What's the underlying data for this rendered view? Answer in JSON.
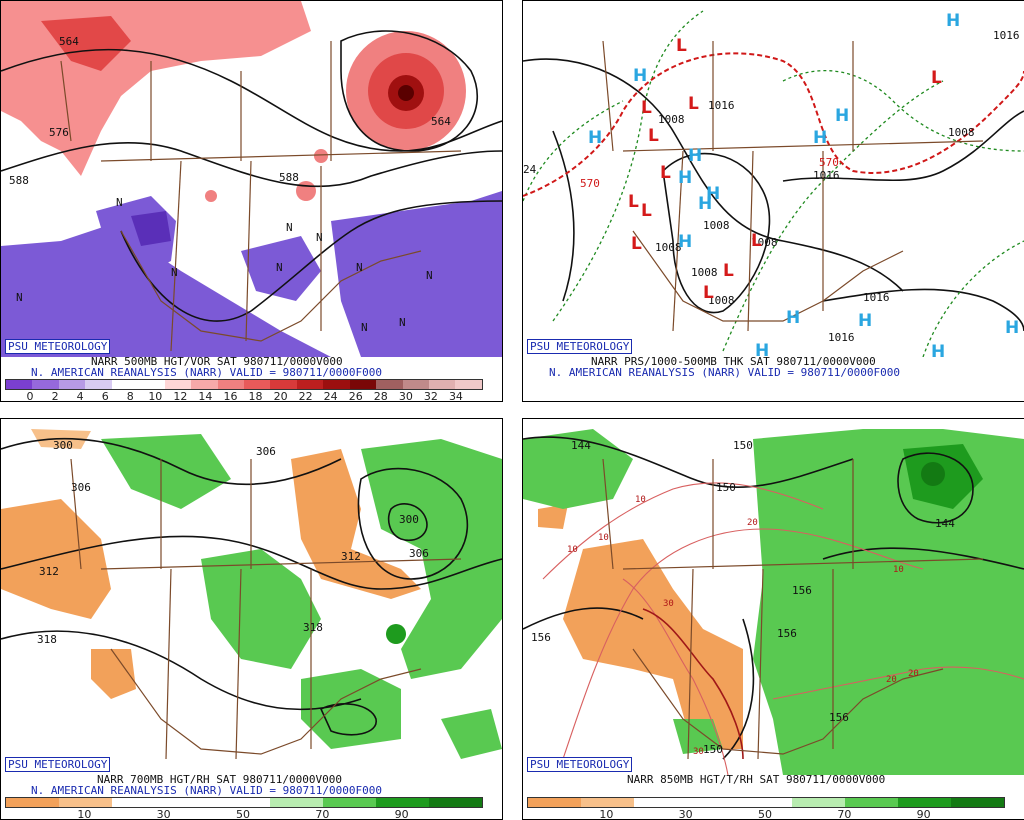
{
  "badge": "PSU METEOROLOGY",
  "panels": {
    "p1": {
      "line1": "NARR 500MB HGT/VOR SAT 980711/0000V000",
      "line2": "N. AMERICAN REANALYSIS (NARR) VALID = 980711/0000F000",
      "colorbar_labels": [
        "0",
        "2",
        "4",
        "6",
        "8",
        "10",
        "12",
        "14",
        "16",
        "18",
        "20",
        "22",
        "24",
        "26",
        "28",
        "30",
        "32",
        "34"
      ],
      "colorbar_colors": [
        "#7b3fd0",
        "#9669dc",
        "#b79ae6",
        "#d8cbf2",
        "#ffffff",
        "#ffffff",
        "#ffd6d6",
        "#f7a9a9",
        "#f08080",
        "#e85a5a",
        "#d83a3a",
        "#bd1f1f",
        "#9c0f0f",
        "#7a0707",
        "#a06060",
        "#c08a8a",
        "#e0b0b0",
        "#f0c8c8"
      ],
      "contour_labels": [
        "564",
        "576",
        "588",
        "588",
        "564"
      ],
      "n_markers": [
        "N",
        "N",
        "N",
        "N",
        "N",
        "N",
        "N",
        "N",
        "N",
        "N"
      ]
    },
    "p2": {
      "line1": "NARR PRS/1000-500MB THK SAT 980711/0000V000",
      "line2": "N. AMERICAN REANALYSIS (NARR) VALID = 980711/0000F000",
      "pressure_labels": [
        "1016",
        "1008",
        "1008",
        "1016",
        "1016",
        "1008",
        "1008",
        "1008",
        "1008",
        "1016",
        "1016",
        "1008",
        "24"
      ],
      "thickness_labels": [
        "570",
        "570"
      ],
      "low_symbols": [
        "L",
        "L",
        "L",
        "L",
        "L",
        "L",
        "L",
        "L",
        "L",
        "L",
        "L",
        "L"
      ],
      "high_symbols": [
        "H",
        "H",
        "H",
        "H",
        "H",
        "H",
        "H",
        "H",
        "H",
        "H",
        "H",
        "H",
        "H",
        "H",
        "H"
      ]
    },
    "p3": {
      "line1": "NARR 700MB HGT/RH SAT 980711/0000V000",
      "line2": "N. AMERICAN REANALYSIS (NARR) VALID = 980711/0000F000",
      "colorbar_labels": [
        "10",
        "30",
        "50",
        "70",
        "90"
      ],
      "colorbar_colors": [
        "#f2a15a",
        "#f7c08a",
        "#ffffff",
        "#ffffff",
        "#ffffff",
        "#b8ecb0",
        "#59c951",
        "#1e9b1e",
        "#137a13"
      ],
      "contour_labels": [
        "300",
        "306",
        "312",
        "318",
        "312",
        "306",
        "306",
        "300",
        "318"
      ]
    },
    "p4": {
      "line1": "NARR 850MB HGT/T/RH SAT 980711/0000V000",
      "colorbar_labels": [
        "10",
        "30",
        "50",
        "70",
        "90"
      ],
      "colorbar_colors": [
        "#f2a15a",
        "#f7c08a",
        "#ffffff",
        "#ffffff",
        "#ffffff",
        "#b8ecb0",
        "#59c951",
        "#1e9b1e",
        "#137a13"
      ],
      "contour_labels": [
        "144",
        "150",
        "156",
        "156",
        "156",
        "156",
        "144",
        "150",
        "150"
      ],
      "temp_labels": [
        "10",
        "10",
        "10",
        "20",
        "30",
        "20",
        "20",
        "10",
        "30"
      ]
    }
  }
}
